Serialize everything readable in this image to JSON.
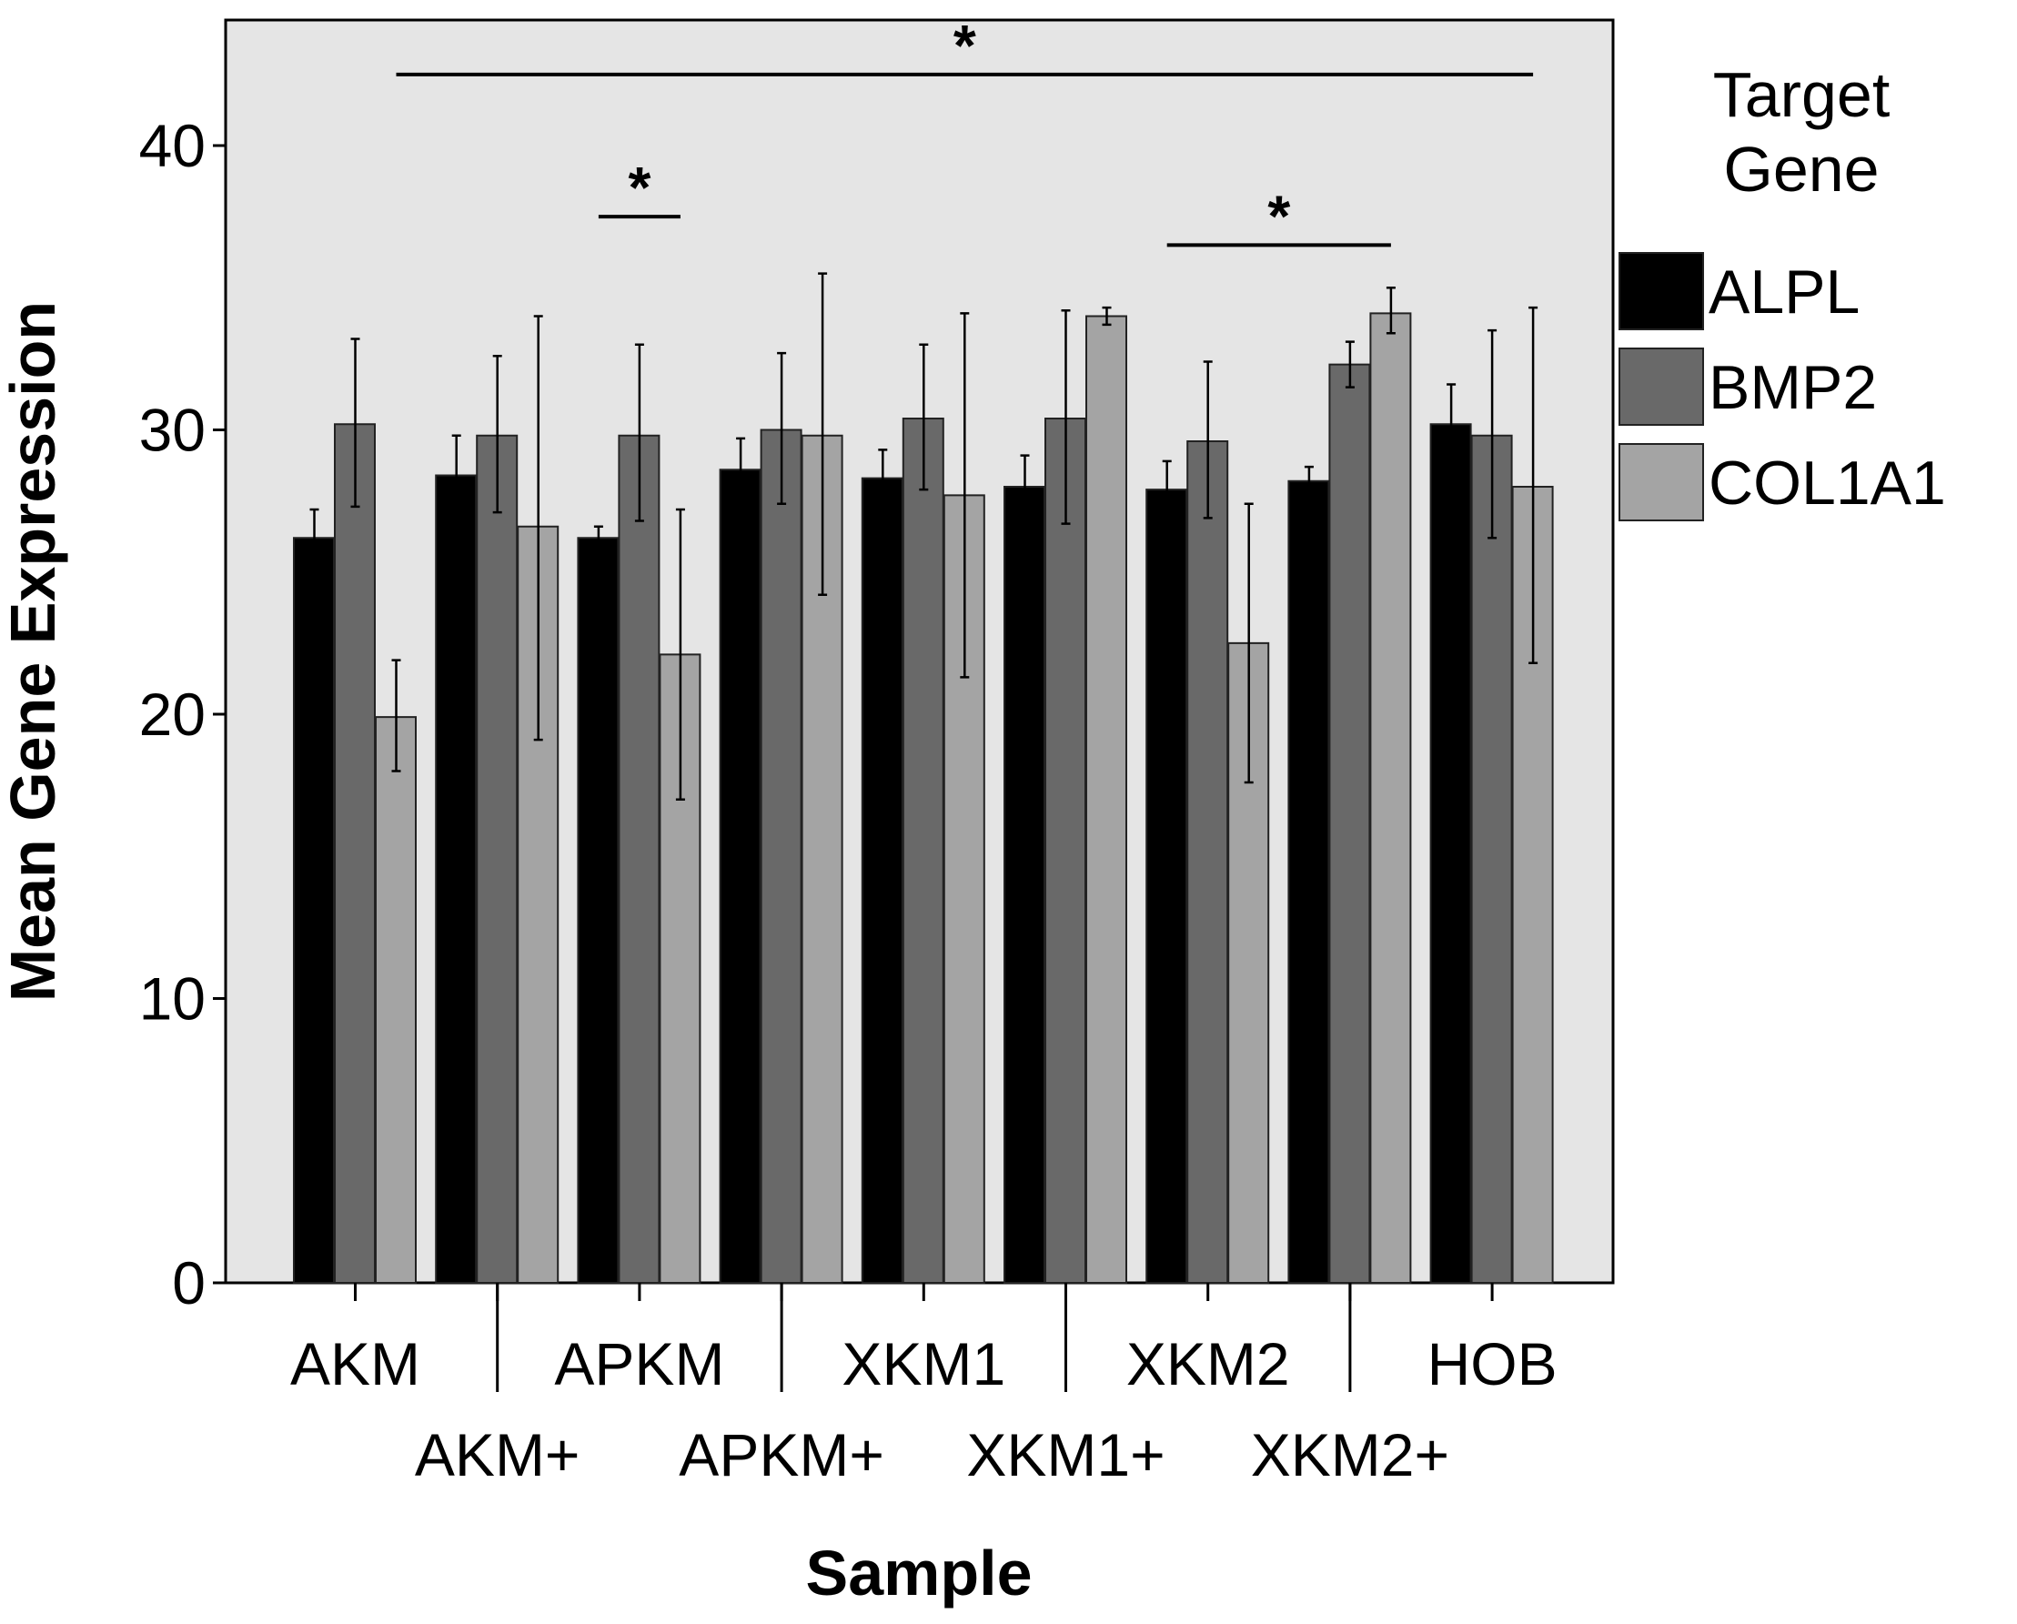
{
  "chart_data": {
    "type": "bar",
    "xlabel": "Sample",
    "ylabel": "Mean Gene Expression",
    "ylim": [
      0,
      40
    ],
    "yticks": [
      0,
      10,
      20,
      30,
      40
    ],
    "grid": false,
    "legend_title": "Target Gene",
    "legend_position": "right",
    "categories": [
      "AKM",
      "AKM+",
      "APKM",
      "APKM+",
      "XKM1",
      "XKM1+",
      "XKM2",
      "XKM2+",
      "HOB"
    ],
    "category_rows": [
      0,
      1,
      0,
      1,
      0,
      1,
      0,
      1,
      0
    ],
    "series": [
      {
        "name": "ALPL",
        "color": "#000000",
        "values": [
          26.2,
          28.4,
          26.2,
          28.6,
          28.3,
          28.0,
          27.9,
          28.2,
          30.2
        ],
        "error_low": [
          25.3,
          27.1,
          25.8,
          27.6,
          27.3,
          27.0,
          26.9,
          27.7,
          28.8
        ],
        "error_high": [
          27.2,
          29.8,
          26.6,
          29.7,
          29.3,
          29.1,
          28.9,
          28.7,
          31.6
        ]
      },
      {
        "name": "BMP2",
        "color": "#696969",
        "values": [
          30.2,
          29.8,
          29.8,
          30.0,
          30.4,
          30.4,
          29.6,
          32.3,
          29.8
        ],
        "error_low": [
          27.3,
          27.1,
          26.8,
          27.4,
          27.9,
          26.7,
          26.9,
          31.5,
          26.2
        ],
        "error_high": [
          33.2,
          32.6,
          33.0,
          32.7,
          33.0,
          34.2,
          32.4,
          33.1,
          33.5
        ]
      },
      {
        "name": "COL1A1",
        "color": "#a4a4a4",
        "values": [
          19.9,
          26.6,
          22.1,
          29.8,
          27.7,
          34.0,
          22.5,
          34.1,
          28.0
        ],
        "error_low": [
          18.0,
          19.1,
          17.0,
          24.2,
          21.3,
          33.7,
          17.6,
          33.4,
          21.8
        ],
        "error_high": [
          21.9,
          34.0,
          27.2,
          35.5,
          34.1,
          34.3,
          27.4,
          35.0,
          34.3
        ]
      }
    ],
    "significance": [
      {
        "label": "*",
        "from": "AKM",
        "to": "HOB",
        "y": 42.5
      },
      {
        "label": "*",
        "from": "APKM",
        "to": "APKM",
        "y": 37.5
      },
      {
        "label": "*",
        "from": "XKM2",
        "to": "XKM2+",
        "y": 36.5
      }
    ]
  }
}
